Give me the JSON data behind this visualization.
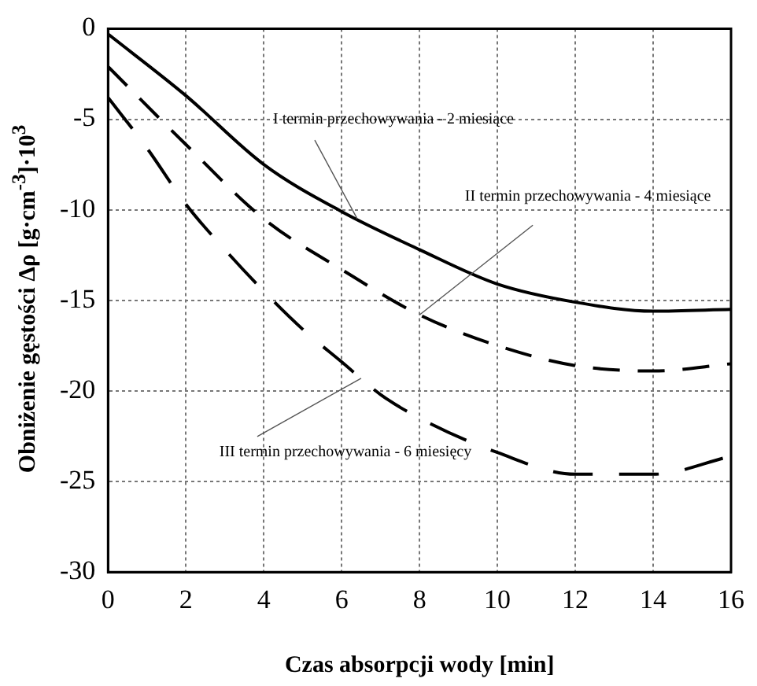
{
  "chart_data": {
    "type": "line",
    "xlabel": "Czas absorpcji wody [min]",
    "ylabel": "Obniżenie gęstości Δρ [g·cm$^{-3}$]·10$^{3}$",
    "x": [
      0,
      2,
      4,
      6,
      8,
      10,
      12,
      14,
      16
    ],
    "series": [
      {
        "color": "#000000",
        "line_style": "solid",
        "values": [
          -0.3,
          -3.7,
          -7.5,
          -10.1,
          -12.2,
          -14.1,
          -15.1,
          -15.6,
          -15.5
        ]
      },
      {
        "color": "#000000",
        "line_style": "dashed",
        "values": [
          -2.1,
          -6.4,
          -10.5,
          -13.3,
          -15.8,
          -17.5,
          -18.6,
          -18.9,
          -18.5
        ]
      },
      {
        "color": "#000000",
        "line_style": "dashed",
        "x": [
          0,
          1,
          2,
          3,
          4,
          5,
          6,
          7,
          8,
          10,
          12,
          14,
          16
        ],
        "values": [
          -3.8,
          -6.6,
          -9.7,
          -12.2,
          -14.5,
          -16.6,
          -18.4,
          -20.2,
          -21.5,
          -23.4,
          -24.6,
          -24.6,
          -23.6
        ]
      }
    ],
    "annotations": [
      {
        "text": "I termin przechowywania - 2 miesiące",
        "x": 6.4,
        "y": -10.5
      },
      {
        "text": "II termin przechowywania - 4 miesiące",
        "x": 8,
        "y": -15.8
      },
      {
        "text": "III termin przechowywania - 6 miesięcy",
        "x": 6.5,
        "y": -19.3
      }
    ],
    "xlim": [
      0,
      16
    ],
    "ylim": [
      -30,
      0
    ],
    "xticks": [
      0,
      2,
      4,
      6,
      8,
      10,
      12,
      14,
      16
    ],
    "yticks": [
      -30,
      -25,
      -20,
      -15,
      -10,
      -5,
      0
    ],
    "grid": true,
    "marker": "none",
    "legend": false
  }
}
